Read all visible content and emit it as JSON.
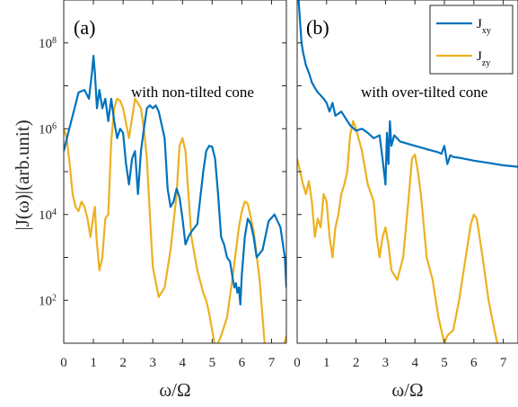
{
  "colors": {
    "jxy": "#0072bd",
    "jzy": "#edb120",
    "axis": "#262626"
  },
  "ylabel_text": "|J(ω)|(arb.unit)",
  "xlabel_text": "ω/Ω",
  "chart_data": [
    {
      "type": "line",
      "panel_tag": "(a)",
      "annotation": "with non-tilted cone",
      "xlabel": "ω/Ω",
      "ylabel": "|J(ω)|(arb.unit)",
      "y_scale": "log",
      "xlim": [
        0,
        7.5
      ],
      "ylim": [
        10,
        1000000000.0
      ],
      "x_ticks": [
        0,
        1,
        2,
        3,
        4,
        5,
        6,
        7
      ],
      "y_ticks": [
        100,
        10000,
        1000000,
        100000000
      ],
      "y_tick_labels": [
        [
          "10",
          "2"
        ],
        [
          "10",
          "4"
        ],
        [
          "10",
          "6"
        ],
        [
          "10",
          "8"
        ]
      ],
      "series": [
        {
          "name": "J_xy",
          "color": "#0072bd",
          "x": [
            0,
            0.15,
            0.3,
            0.5,
            0.7,
            0.85,
            0.95,
            1.0,
            1.05,
            1.12,
            1.2,
            1.3,
            1.4,
            1.5,
            1.6,
            1.7,
            1.8,
            1.9,
            2.0,
            2.1,
            2.2,
            2.3,
            2.4,
            2.5,
            2.6,
            2.7,
            2.8,
            2.9,
            3.0,
            3.1,
            3.2,
            3.4,
            3.5,
            3.6,
            3.7,
            3.8,
            3.9,
            4.0,
            4.1,
            4.2,
            4.3,
            4.5,
            4.7,
            4.8,
            4.9,
            5.0,
            5.1,
            5.2,
            5.3,
            5.4,
            5.5,
            5.6,
            5.7,
            5.75,
            5.8,
            5.85,
            5.9,
            5.95,
            6.0,
            6.1,
            6.2,
            6.3,
            6.4,
            6.5,
            6.7,
            6.9,
            7.1,
            7.3,
            7.45,
            7.5
          ],
          "y": [
            300000,
            800000,
            2000000,
            7000000,
            8000000,
            5000000,
            20000000,
            50000000,
            20000000,
            3000000,
            8000000,
            3000000,
            5000000,
            1500000,
            5000000,
            1500000,
            600000,
            1000000,
            800000,
            150000,
            50000,
            200000,
            300000,
            30000,
            300000,
            1000000,
            3000000,
            3500000,
            3000000,
            3500000,
            2500000,
            600000,
            40000,
            15000,
            20000,
            40000,
            25000,
            8000,
            2000,
            3000,
            4000,
            6000,
            100000,
            300000,
            400000,
            380000,
            200000,
            30000,
            3000,
            2000,
            1000,
            800,
            300,
            200,
            250,
            150,
            200,
            80,
            400,
            3000,
            8000,
            6000,
            3000,
            1000,
            1500,
            7000,
            10000,
            5000,
            1000,
            200
          ]
        },
        {
          "name": "J_zy",
          "color": "#edb120",
          "x": [
            0,
            0.1,
            0.2,
            0.3,
            0.4,
            0.5,
            0.6,
            0.7,
            0.8,
            0.9,
            1.0,
            1.05,
            1.1,
            1.2,
            1.3,
            1.4,
            1.5,
            1.6,
            1.7,
            1.8,
            1.9,
            2.0,
            2.2,
            2.4,
            2.6,
            2.7,
            2.8,
            2.9,
            3.0,
            3.2,
            3.4,
            3.6,
            3.8,
            3.9,
            4.0,
            4.1,
            4.2,
            4.3,
            4.5,
            4.7,
            4.8,
            4.9,
            5.0,
            5.1,
            5.2,
            5.3,
            5.5,
            5.7,
            5.9,
            6.0,
            6.1,
            6.2,
            6.4,
            6.6,
            6.7,
            6.8,
            7.4,
            7.5
          ],
          "y": [
            1000000,
            600000,
            150000,
            30000,
            15000,
            12000,
            20000,
            15000,
            8000,
            3000,
            10000,
            15000,
            3000,
            500,
            1000,
            8000,
            10000,
            500000,
            3000000,
            5000000,
            4500000,
            3000000,
            600000,
            5000000,
            3000000,
            1000000,
            200000,
            10000,
            600,
            120,
            200,
            1500,
            30000,
            400000,
            600000,
            300000,
            30000,
            3000,
            500,
            150,
            100,
            50,
            20,
            8,
            10,
            15,
            40,
            400,
            5000,
            12000,
            20000,
            18000,
            4000,
            300,
            40,
            5,
            8,
            15
          ]
        }
      ]
    },
    {
      "type": "line",
      "panel_tag": "(b)",
      "annotation": "with over-tilted cone",
      "xlabel": "ω/Ω",
      "y_scale": "log",
      "xlim": [
        0,
        7.5
      ],
      "ylim": [
        10,
        1000000000.0
      ],
      "x_ticks": [
        0,
        1,
        2,
        3,
        4,
        5,
        6,
        7
      ],
      "legend": {
        "position": "top-right",
        "entries": [
          [
            "J",
            "xy"
          ],
          [
            "J",
            "zy"
          ]
        ]
      },
      "series": [
        {
          "name": "J_xy",
          "color": "#0072bd",
          "x": [
            0.05,
            0.1,
            0.15,
            0.2,
            0.3,
            0.4,
            0.5,
            0.6,
            0.7,
            0.8,
            0.9,
            1.0,
            1.1,
            1.2,
            1.3,
            1.5,
            1.8,
            2.0,
            2.2,
            2.4,
            2.6,
            2.8,
            2.9,
            3.0,
            3.05,
            3.1,
            3.15,
            3.2,
            3.3,
            3.5,
            4.0,
            4.5,
            4.8,
            4.9,
            5.0,
            5.1,
            5.2,
            5.3,
            5.5,
            6.0,
            6.5,
            7.0,
            7.5
          ],
          "y": [
            1000000000.0,
            300000000,
            100000000,
            60000000,
            30000000,
            20000000,
            12000000,
            9000000,
            7000000,
            6000000,
            5000000,
            4000000,
            2500000,
            4000000,
            2000000,
            2500000,
            1200000,
            900000,
            1000000,
            800000,
            600000,
            700000,
            200000,
            50000,
            800000,
            150000,
            1500000,
            400000,
            700000,
            500000,
            400000,
            320000,
            280000,
            260000,
            400000,
            150000,
            240000,
            220000,
            210000,
            180000,
            160000,
            140000,
            130000
          ]
        },
        {
          "name": "J_zy",
          "color": "#edb120",
          "x": [
            0,
            0.1,
            0.2,
            0.3,
            0.4,
            0.5,
            0.6,
            0.7,
            0.8,
            0.9,
            1.0,
            1.1,
            1.2,
            1.3,
            1.4,
            1.5,
            1.6,
            1.7,
            1.8,
            1.9,
            2.0,
            2.2,
            2.4,
            2.6,
            2.7,
            2.8,
            2.9,
            3.0,
            3.1,
            3.2,
            3.4,
            3.6,
            3.8,
            3.9,
            4.0,
            4.1,
            4.2,
            4.4,
            4.6,
            4.8,
            4.9,
            5.0,
            5.1,
            5.3,
            5.5,
            5.7,
            5.9,
            6.0,
            6.1,
            6.3,
            6.5,
            6.7,
            6.8,
            7.4,
            7.5
          ],
          "y": [
            200000,
            100000,
            50000,
            30000,
            60000,
            20000,
            3000,
            8000,
            5000,
            30000,
            20000,
            3000,
            1000,
            5000,
            10000,
            30000,
            50000,
            100000,
            700000,
            1500000,
            1000000,
            300000,
            50000,
            20000,
            3000,
            1000,
            3000,
            5000,
            2000,
            500,
            300,
            1000,
            30000,
            200000,
            250000,
            100000,
            30000,
            1000,
            300,
            40,
            20,
            10,
            15,
            20,
            100,
            800,
            6000,
            10000,
            8000,
            1000,
            100,
            20,
            10,
            5,
            8
          ]
        }
      ]
    }
  ]
}
